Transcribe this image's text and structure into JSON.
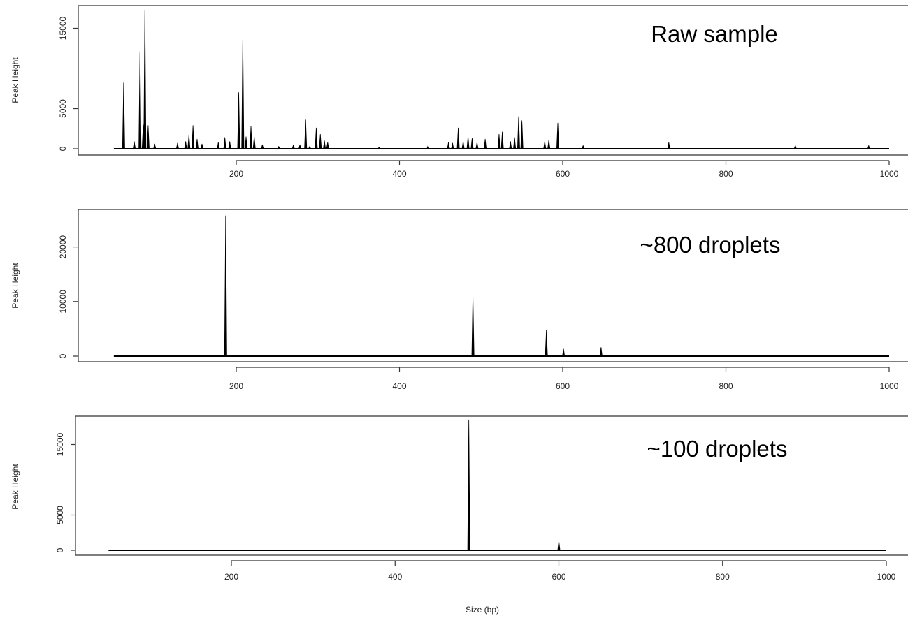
{
  "chart_data": [
    {
      "type": "line",
      "title": "Raw sample",
      "xlabel": "",
      "ylabel": "Peak Height",
      "xlim": [
        0,
        1000
      ],
      "ylim": [
        0,
        17500
      ],
      "x_ticks": [
        200,
        400,
        600,
        800,
        1000
      ],
      "y_ticks": [
        0,
        5000,
        15000
      ],
      "baseline_x_range": [
        50,
        1000
      ],
      "peaks": [
        {
          "x": 62,
          "y": 8200
        },
        {
          "x": 75,
          "y": 900
        },
        {
          "x": 82,
          "y": 12100
        },
        {
          "x": 86,
          "y": 3000
        },
        {
          "x": 88,
          "y": 17200
        },
        {
          "x": 92,
          "y": 2900
        },
        {
          "x": 100,
          "y": 600
        },
        {
          "x": 128,
          "y": 700
        },
        {
          "x": 138,
          "y": 900
        },
        {
          "x": 142,
          "y": 1700
        },
        {
          "x": 147,
          "y": 2900
        },
        {
          "x": 152,
          "y": 1200
        },
        {
          "x": 158,
          "y": 600
        },
        {
          "x": 178,
          "y": 800
        },
        {
          "x": 186,
          "y": 1400
        },
        {
          "x": 192,
          "y": 900
        },
        {
          "x": 203,
          "y": 7000
        },
        {
          "x": 208,
          "y": 13600
        },
        {
          "x": 212,
          "y": 1500
        },
        {
          "x": 218,
          "y": 2800
        },
        {
          "x": 222,
          "y": 1500
        },
        {
          "x": 232,
          "y": 500
        },
        {
          "x": 252,
          "y": 300
        },
        {
          "x": 270,
          "y": 500
        },
        {
          "x": 278,
          "y": 500
        },
        {
          "x": 285,
          "y": 3600
        },
        {
          "x": 290,
          "y": 300
        },
        {
          "x": 298,
          "y": 2600
        },
        {
          "x": 303,
          "y": 1800
        },
        {
          "x": 308,
          "y": 1000
        },
        {
          "x": 312,
          "y": 800
        },
        {
          "x": 375,
          "y": 200
        },
        {
          "x": 435,
          "y": 400
        },
        {
          "x": 460,
          "y": 800
        },
        {
          "x": 465,
          "y": 700
        },
        {
          "x": 472,
          "y": 2600
        },
        {
          "x": 478,
          "y": 900
        },
        {
          "x": 484,
          "y": 1500
        },
        {
          "x": 489,
          "y": 1300
        },
        {
          "x": 495,
          "y": 800
        },
        {
          "x": 505,
          "y": 1200
        },
        {
          "x": 522,
          "y": 1800
        },
        {
          "x": 526,
          "y": 2100
        },
        {
          "x": 536,
          "y": 900
        },
        {
          "x": 541,
          "y": 1400
        },
        {
          "x": 546,
          "y": 4000
        },
        {
          "x": 550,
          "y": 3500
        },
        {
          "x": 578,
          "y": 900
        },
        {
          "x": 583,
          "y": 1100
        },
        {
          "x": 594,
          "y": 3200
        },
        {
          "x": 625,
          "y": 400
        },
        {
          "x": 730,
          "y": 800
        },
        {
          "x": 885,
          "y": 400
        },
        {
          "x": 975,
          "y": 400
        }
      ]
    },
    {
      "type": "line",
      "title": "~800 droplets",
      "xlabel": "",
      "ylabel": "Peak Height",
      "xlim": [
        0,
        1000
      ],
      "ylim": [
        0,
        26000
      ],
      "x_ticks": [
        200,
        400,
        600,
        800,
        1000
      ],
      "y_ticks": [
        0,
        10000,
        20000
      ],
      "baseline_x_range": [
        50,
        1000
      ],
      "peaks": [
        {
          "x": 187,
          "y": 25700
        },
        {
          "x": 490,
          "y": 11100
        },
        {
          "x": 580,
          "y": 4700
        },
        {
          "x": 601,
          "y": 1300
        },
        {
          "x": 647,
          "y": 1600
        }
      ]
    },
    {
      "type": "line",
      "title": "~100 droplets",
      "xlabel": "Size (bp)",
      "ylabel": "Peak Height",
      "xlim": [
        0,
        1000
      ],
      "ylim": [
        0,
        19000
      ],
      "x_ticks": [
        200,
        400,
        600,
        800,
        1000
      ],
      "y_ticks": [
        0,
        5000,
        15000
      ],
      "baseline_x_range": [
        50,
        1000
      ],
      "peaks": [
        {
          "x": 490,
          "y": 18500
        },
        {
          "x": 600,
          "y": 1300
        }
      ]
    }
  ]
}
